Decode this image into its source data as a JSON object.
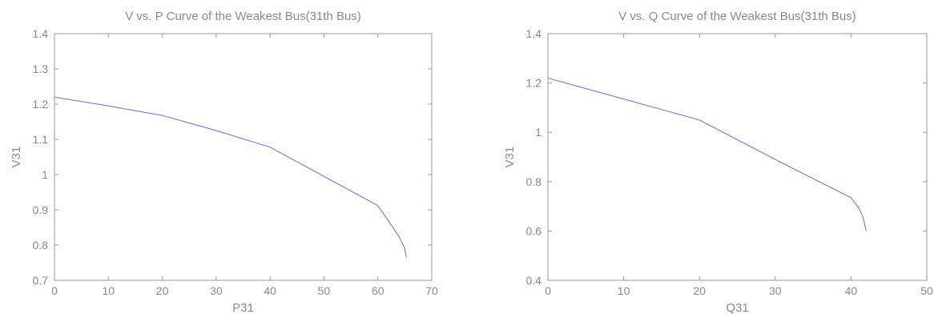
{
  "chart_data": [
    {
      "type": "line",
      "title": "V vs. P Curve of the Weakest Bus(31th Bus)",
      "xlabel": "P31",
      "ylabel": "V31",
      "xlim": [
        0,
        70
      ],
      "ylim": [
        0.7,
        1.4
      ],
      "xticks": [
        "0",
        "10",
        "20",
        "30",
        "40",
        "50",
        "60",
        "70"
      ],
      "yticks": [
        "0.7",
        "0.8",
        "0.9",
        "1",
        "1.1",
        "1.2",
        "1.3",
        "1.4"
      ],
      "grid": false,
      "line_color": "#6b6bd6",
      "series": [
        {
          "x": [
            0,
            10,
            20,
            30,
            40,
            50,
            60,
            62,
            64,
            65,
            65.3
          ],
          "y": [
            1.22,
            1.195,
            1.168,
            1.125,
            1.078,
            0.995,
            0.912,
            0.868,
            0.822,
            0.79,
            0.765
          ]
        }
      ]
    },
    {
      "type": "line",
      "title": "V vs. Q Curve of the Weakest Bus(31th Bus)",
      "xlabel": "Q31",
      "ylabel": "V31",
      "xlim": [
        0,
        50
      ],
      "ylim": [
        0.4,
        1.4
      ],
      "xticks": [
        "0",
        "10",
        "20",
        "30",
        "40",
        "50"
      ],
      "yticks": [
        "0.4",
        "0.6",
        "0.8",
        "1",
        "1.2",
        "1.4"
      ],
      "grid": false,
      "line_color": "#6b6bd6",
      "series": [
        {
          "x": [
            0,
            10,
            20,
            30,
            40,
            41,
            41.6,
            42
          ],
          "y": [
            1.22,
            1.135,
            1.05,
            0.89,
            0.735,
            0.695,
            0.655,
            0.6
          ]
        }
      ]
    }
  ]
}
